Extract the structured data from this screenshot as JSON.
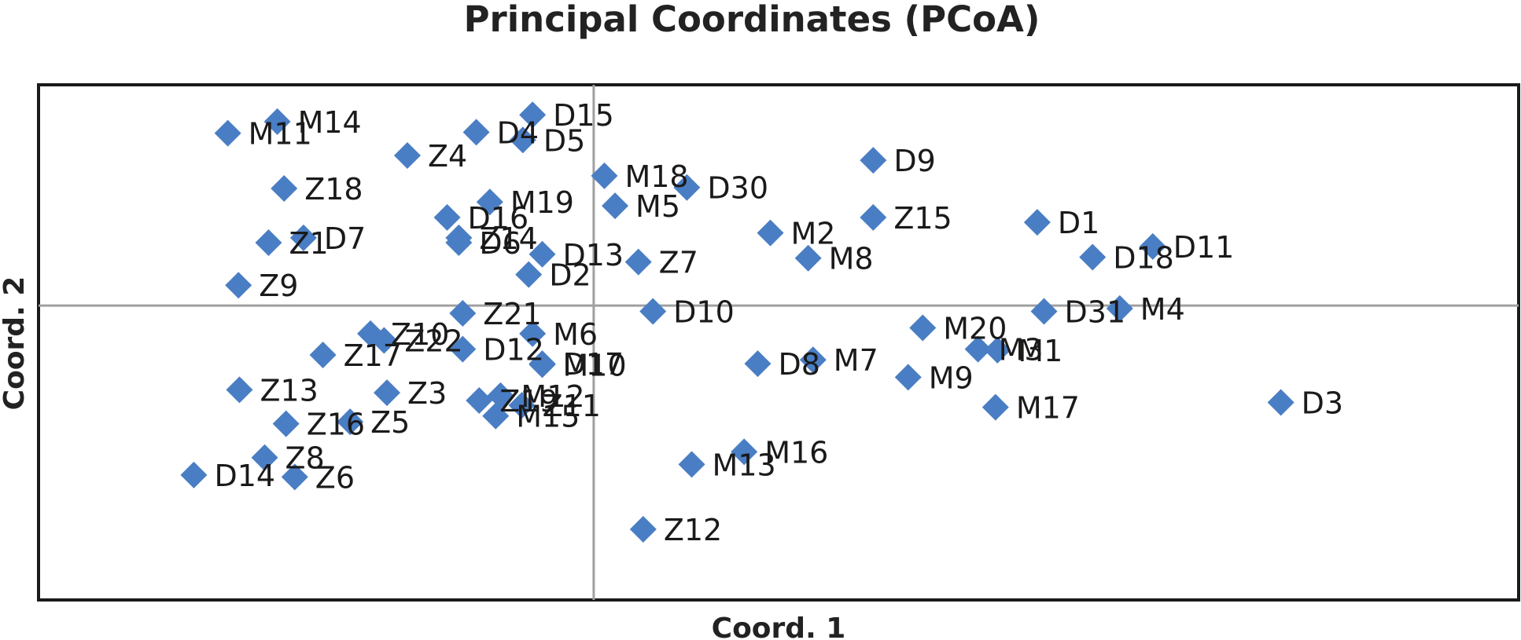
{
  "chart_data": {
    "type": "scatter",
    "title": "Principal Coordinates (PCoA)",
    "xlabel": "Coord. 1",
    "ylabel": "Coord. 2",
    "xlim": [
      -5.72,
      9.53
    ],
    "ylim": [
      -3.04,
      2.28
    ],
    "grid": false,
    "zero_lines": true,
    "marker": "diamond",
    "marker_color": "#4A7EC4",
    "legend": "none",
    "points": [
      {
        "label": "M11",
        "x": -3.77,
        "y": 1.78
      },
      {
        "label": "M14",
        "x": -3.26,
        "y": 1.9
      },
      {
        "label": "D15",
        "x": -0.63,
        "y": 1.97
      },
      {
        "label": "D4",
        "x": -1.21,
        "y": 1.79
      },
      {
        "label": "D5",
        "x": -0.73,
        "y": 1.71
      },
      {
        "label": "Z4",
        "x": -1.92,
        "y": 1.55
      },
      {
        "label": "M18",
        "x": 0.11,
        "y": 1.34
      },
      {
        "label": "D30",
        "x": 0.96,
        "y": 1.22
      },
      {
        "label": "D9",
        "x": 2.88,
        "y": 1.5
      },
      {
        "label": "Z18",
        "x": -3.19,
        "y": 1.21
      },
      {
        "label": "M19",
        "x": -1.07,
        "y": 1.07
      },
      {
        "label": "M5",
        "x": 0.22,
        "y": 1.03
      },
      {
        "label": "D16",
        "x": -1.51,
        "y": 0.91
      },
      {
        "label": "Z15",
        "x": 2.88,
        "y": 0.91
      },
      {
        "label": "D1",
        "x": 4.57,
        "y": 0.86
      },
      {
        "label": "M2",
        "x": 1.82,
        "y": 0.75
      },
      {
        "label": "Z1",
        "x": -3.35,
        "y": 0.65
      },
      {
        "label": "D7",
        "x": -2.99,
        "y": 0.7
      },
      {
        "label": "Z14",
        "x": -1.39,
        "y": 0.7
      },
      {
        "label": "D6",
        "x": -1.39,
        "y": 0.65
      },
      {
        "label": "D13",
        "x": -0.53,
        "y": 0.53
      },
      {
        "label": "Z7",
        "x": 0.46,
        "y": 0.45
      },
      {
        "label": "M8",
        "x": 2.21,
        "y": 0.49
      },
      {
        "label": "D11",
        "x": 5.76,
        "y": 0.61
      },
      {
        "label": "D18",
        "x": 5.14,
        "y": 0.5
      },
      {
        "label": "D2",
        "x": -0.67,
        "y": 0.32
      },
      {
        "label": "Z9",
        "x": -3.66,
        "y": 0.21
      },
      {
        "label": "D31",
        "x": 4.64,
        "y": -0.06
      },
      {
        "label": "M4",
        "x": 5.42,
        "y": -0.03
      },
      {
        "label": "Z21",
        "x": -1.35,
        "y": -0.08
      },
      {
        "label": "D10",
        "x": 0.61,
        "y": -0.06
      },
      {
        "label": "M20",
        "x": 3.39,
        "y": -0.23
      },
      {
        "label": "M6",
        "x": -0.63,
        "y": -0.29
      },
      {
        "label": "Z10",
        "x": -2.3,
        "y": -0.29
      },
      {
        "label": "D12",
        "x": -1.35,
        "y": -0.45
      },
      {
        "label": "Z22",
        "x": -2.16,
        "y": -0.36
      },
      {
        "label": "Z17",
        "x": -2.79,
        "y": -0.51
      },
      {
        "label": "D17",
        "x": -0.53,
        "y": -0.6
      },
      {
        "label": "M3",
        "x": 3.96,
        "y": -0.45
      },
      {
        "label": "M1",
        "x": 4.16,
        "y": -0.46
      },
      {
        "label": "M10",
        "x": -0.53,
        "y": -0.61
      },
      {
        "label": "D8",
        "x": 1.69,
        "y": -0.6
      },
      {
        "label": "M7",
        "x": 2.26,
        "y": -0.56
      },
      {
        "label": "M9",
        "x": 3.24,
        "y": -0.74
      },
      {
        "label": "Z13",
        "x": -3.65,
        "y": -0.87
      },
      {
        "label": "Z3",
        "x": -2.13,
        "y": -0.9
      },
      {
        "label": "Z19",
        "x": -1.18,
        "y": -0.98
      },
      {
        "label": "M12",
        "x": -0.96,
        "y": -0.93
      },
      {
        "label": "Z11",
        "x": -0.74,
        "y": -1.03
      },
      {
        "label": "M15",
        "x": -1.01,
        "y": -1.14
      },
      {
        "label": "M17",
        "x": 4.14,
        "y": -1.05
      },
      {
        "label": "D3",
        "x": 7.08,
        "y": -1.0
      },
      {
        "label": "Z16",
        "x": -3.17,
        "y": -1.22
      },
      {
        "label": "Z5",
        "x": -2.51,
        "y": -1.2
      },
      {
        "label": "M16",
        "x": 1.55,
        "y": -1.51
      },
      {
        "label": "M13",
        "x": 1.01,
        "y": -1.64
      },
      {
        "label": "Z8",
        "x": -3.39,
        "y": -1.57
      },
      {
        "label": "D14",
        "x": -4.12,
        "y": -1.75
      },
      {
        "label": "Z6",
        "x": -3.08,
        "y": -1.77
      },
      {
        "label": "Z12",
        "x": 0.51,
        "y": -2.31
      }
    ]
  }
}
